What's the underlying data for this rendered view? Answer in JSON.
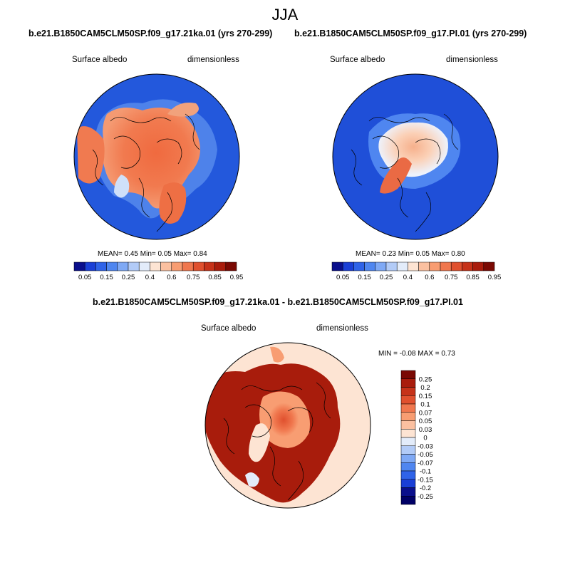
{
  "figure": {
    "season_title": "JJA",
    "panels": [
      {
        "case_title": "b.e21.B1850CAM5CLM50SP.f09_g17.21ka.01 (yrs 270-299)",
        "variable": "Surface albedo",
        "units": "dimensionless",
        "mean_label": "MEAN=",
        "mean_value": "0.45",
        "min_label": "Min=",
        "min_value": "0.05",
        "max_label": "Max=",
        "max_value": "0.84"
      },
      {
        "case_title": "b.e21.B1850CAM5CLM50SP.f09_g17.PI.01 (yrs 270-299)",
        "variable": "Surface albedo",
        "units": "dimensionless",
        "mean_label": "MEAN=",
        "mean_value": "0.23",
        "min_label": "Min=",
        "min_value": "0.05",
        "max_label": "Max=",
        "max_value": "0.80"
      }
    ],
    "diff_panel": {
      "case_title": "b.e21.B1850CAM5CLM50SP.f09_g17.21ka.01 - b.e21.B1850CAM5CLM50SP.f09_g17.PI.01",
      "variable": "Surface albedo",
      "units": "dimensionless",
      "minmax_text": "MIN =  -0.08 MAX =   0.73"
    },
    "colorbar_main": {
      "labels": [
        "0.05",
        "0.15",
        "0.25",
        "0.4",
        "0.6",
        "0.75",
        "0.85",
        "0.95"
      ],
      "colors": [
        "#0a0f8c",
        "#1a3fd6",
        "#2f63e8",
        "#4f86f0",
        "#7fa9f5",
        "#b2cbf7",
        "#e3ecfa",
        "#fde4d3",
        "#fbc0a0",
        "#f89d72",
        "#f0774e",
        "#e0502e",
        "#c63219",
        "#a91c0c",
        "#7a0903"
      ]
    },
    "colorbar_diff": {
      "labels": [
        "0.25",
        "0.2",
        "0.15",
        "0.1",
        "0.07",
        "0.05",
        "0.03",
        "0",
        "-0.03",
        "-0.05",
        "-0.07",
        "-0.1",
        "-0.15",
        "-0.2",
        "-0.25"
      ],
      "colors": [
        "#7a0903",
        "#a91c0c",
        "#c63219",
        "#e0502e",
        "#f0774e",
        "#f89d72",
        "#fbc0a0",
        "#fde4d3",
        "#e3ecfa",
        "#b2cbf7",
        "#7fa9f5",
        "#4f86f0",
        "#2f63e8",
        "#1a3fd6",
        "#0a0f8c",
        "#000066"
      ]
    },
    "field_colors": {
      "ocean_low": "#1f4fd8",
      "ice_high": "#ec6a45",
      "diff_high": "#a81c0c",
      "diff_zero": "#fde4d3"
    }
  }
}
